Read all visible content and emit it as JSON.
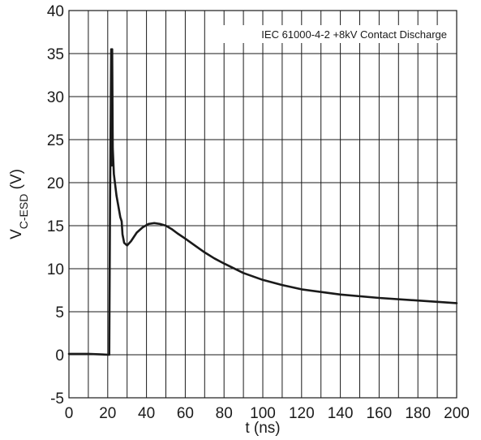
{
  "chart_data": {
    "type": "line",
    "annotation": "IEC 61000-4-2 +8kV Contact Discharge",
    "xlabel": "t (ns)",
    "ylabel": "V",
    "ylabel_subscript": "C-ESD",
    "ylabel_unit": " (V)",
    "xlim": [
      0,
      200
    ],
    "ylim": [
      -5,
      40
    ],
    "xticks": [
      0,
      20,
      40,
      60,
      80,
      100,
      120,
      140,
      160,
      180,
      200
    ],
    "yticks": [
      -5,
      0,
      5,
      10,
      15,
      20,
      25,
      30,
      35,
      40
    ],
    "grid": true,
    "line_color": "#1a1a1a",
    "series": [
      {
        "x": [
          0,
          10,
          20.8,
          20.8,
          21.2,
          21.8,
          22.1,
          22.3,
          22.6,
          23.2,
          24.5,
          26.5,
          27.2,
          27.6,
          28.5,
          30,
          32,
          35,
          38,
          41,
          44,
          47,
          50,
          53,
          56,
          60,
          65,
          70,
          75,
          80,
          90,
          100,
          110,
          120,
          140,
          160,
          180,
          200
        ],
        "y": [
          0.1,
          0.1,
          0.0,
          0.3,
          18,
          35.5,
          22,
          35.5,
          24,
          21,
          18.5,
          16,
          15.5,
          14,
          13,
          12.7,
          13.2,
          14.2,
          14.8,
          15.2,
          15.3,
          15.2,
          15.0,
          14.6,
          14.1,
          13.5,
          12.7,
          11.9,
          11.2,
          10.6,
          9.5,
          8.7,
          8.1,
          7.6,
          7.0,
          6.6,
          6.3,
          6.0
        ]
      }
    ]
  }
}
